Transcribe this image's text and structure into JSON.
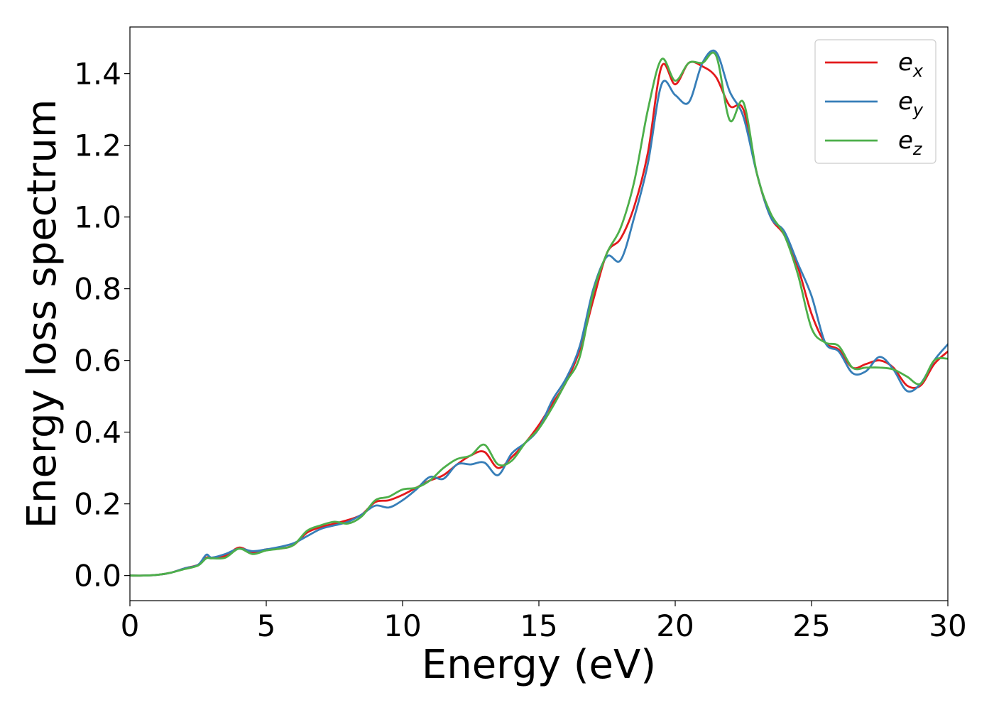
{
  "chart_data": {
    "type": "line",
    "title": "",
    "xlabel": "Energy (eV)",
    "ylabel": "Energy loss spectrum",
    "xlim": [
      0,
      30
    ],
    "ylim": [
      -0.07,
      1.53
    ],
    "xticks": [
      0,
      5,
      10,
      15,
      20,
      25,
      30
    ],
    "yticks": [
      0.0,
      0.2,
      0.4,
      0.6,
      0.8,
      1.0,
      1.2,
      1.4
    ],
    "ytick_labels": [
      "0.0",
      "0.2",
      "0.4",
      "0.6",
      "0.8",
      "1.0",
      "1.2",
      "1.4"
    ],
    "grid": false,
    "legend_position": "top-right",
    "x": [
      0,
      0.5,
      1.0,
      1.5,
      2.0,
      2.5,
      2.8,
      3.0,
      3.5,
      4.0,
      4.5,
      5.0,
      5.5,
      6.0,
      6.5,
      7.0,
      7.5,
      8.0,
      8.5,
      9.0,
      9.5,
      10.0,
      10.5,
      11.0,
      11.5,
      12.0,
      12.5,
      13.0,
      13.5,
      14.0,
      14.5,
      15.0,
      15.5,
      16.0,
      16.5,
      17.0,
      17.5,
      18.0,
      18.5,
      19.0,
      19.5,
      20.0,
      20.5,
      21.0,
      21.5,
      22.0,
      22.5,
      23.0,
      23.5,
      24.0,
      24.5,
      25.0,
      25.5,
      26.0,
      26.5,
      27.0,
      27.5,
      28.0,
      28.5,
      29.0,
      29.5,
      30.0
    ],
    "series": [
      {
        "name": "e",
        "subscript": "x",
        "color": "#e31a1c",
        "values": [
          0.0,
          0.0,
          0.002,
          0.008,
          0.02,
          0.03,
          0.05,
          0.05,
          0.055,
          0.078,
          0.065,
          0.073,
          0.075,
          0.085,
          0.12,
          0.135,
          0.145,
          0.155,
          0.17,
          0.205,
          0.21,
          0.225,
          0.245,
          0.265,
          0.28,
          0.31,
          0.335,
          0.345,
          0.3,
          0.33,
          0.37,
          0.42,
          0.48,
          0.54,
          0.63,
          0.77,
          0.9,
          0.94,
          1.03,
          1.18,
          1.42,
          1.37,
          1.43,
          1.42,
          1.39,
          1.31,
          1.3,
          1.12,
          1.0,
          0.95,
          0.86,
          0.73,
          0.65,
          0.63,
          0.58,
          0.59,
          0.6,
          0.58,
          0.53,
          0.53,
          0.59,
          0.625
        ]
      },
      {
        "name": "e",
        "subscript": "y",
        "color": "#377eb8",
        "values": [
          0.0,
          0.0,
          0.002,
          0.008,
          0.02,
          0.03,
          0.058,
          0.05,
          0.06,
          0.075,
          0.068,
          0.073,
          0.08,
          0.09,
          0.11,
          0.13,
          0.14,
          0.15,
          0.17,
          0.195,
          0.19,
          0.21,
          0.24,
          0.275,
          0.27,
          0.31,
          0.31,
          0.315,
          0.28,
          0.34,
          0.37,
          0.41,
          0.49,
          0.55,
          0.64,
          0.8,
          0.89,
          0.88,
          1.0,
          1.15,
          1.37,
          1.34,
          1.32,
          1.43,
          1.46,
          1.35,
          1.28,
          1.12,
          1.0,
          0.96,
          0.87,
          0.78,
          0.65,
          0.625,
          0.565,
          0.57,
          0.61,
          0.575,
          0.515,
          0.535,
          0.6,
          0.645
        ]
      },
      {
        "name": "e",
        "subscript": "z",
        "color": "#4daf4a",
        "values": [
          0.0,
          0.0,
          0.002,
          0.008,
          0.018,
          0.028,
          0.048,
          0.048,
          0.05,
          0.075,
          0.06,
          0.07,
          0.075,
          0.085,
          0.125,
          0.14,
          0.15,
          0.145,
          0.165,
          0.21,
          0.22,
          0.24,
          0.245,
          0.265,
          0.3,
          0.325,
          0.335,
          0.365,
          0.31,
          0.32,
          0.37,
          0.41,
          0.47,
          0.54,
          0.61,
          0.79,
          0.9,
          0.97,
          1.1,
          1.3,
          1.44,
          1.38,
          1.43,
          1.43,
          1.45,
          1.27,
          1.32,
          1.12,
          1.01,
          0.95,
          0.84,
          0.69,
          0.65,
          0.64,
          0.58,
          0.58,
          0.58,
          0.575,
          0.555,
          0.535,
          0.6,
          0.605
        ]
      }
    ]
  }
}
